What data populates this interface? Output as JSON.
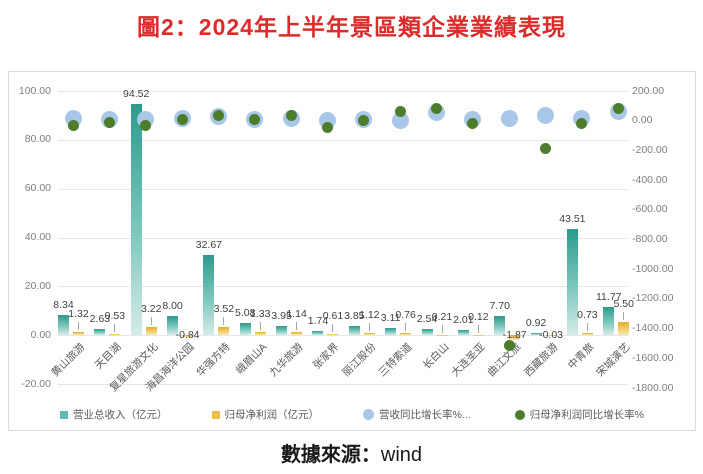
{
  "page": {
    "title": "圖2：2024年上半年景區類企業業績表現",
    "caption_prefix": "數據來源：",
    "caption_source": "wind"
  },
  "colors": {
    "title_red": "#dd2b2b",
    "revenue_bar_top": "#2d9a8d",
    "revenue_bar_bottom": "#d5ece8",
    "profit_bar_top": "#e4ae35",
    "profit_bar_bottom": "#f8e9b4",
    "revenue_growth_marker": "#a9c7e8",
    "profit_growth_marker": "#4d7d2c",
    "axis_text": "#7f7f7f",
    "gridline": "#e7e7e7",
    "frame_border": "#d9d9d9"
  },
  "legend": {
    "items": [
      {
        "label": "营业总收入（亿元）",
        "marker": "square",
        "color": "#5fb9ae"
      },
      {
        "label": "归母净利润（亿元）",
        "marker": "square",
        "color": "#ecc04b"
      },
      {
        "label": "营收同比增长率%...",
        "marker": "circle",
        "color": "#a9c7e8"
      },
      {
        "label": "归母净利润同比增长率%",
        "marker": "circle",
        "color": "#4d7d2c"
      }
    ]
  },
  "chart_data": {
    "type": "bar",
    "subtype": "combo bar + scatter, dual axis",
    "title": "圖2：2024年上半年景區類企業業績表現",
    "categories": [
      "黄山旅游",
      "天目湖",
      "复星旅游文化",
      "海昌海洋公园",
      "华强方特",
      "峨眉山A",
      "九华旅游",
      "张家界",
      "丽江股份",
      "三特索道",
      "长白山",
      "大连圣亚",
      "曲江文旅",
      "西藏旅游",
      "中青旅",
      "宋城演艺"
    ],
    "series": [
      {
        "name": "营业总收入（亿元）",
        "type": "bar",
        "axis": "left",
        "values": [
          8.34,
          2.63,
          94.52,
          8.0,
          32.67,
          5.08,
          3.95,
          1.74,
          3.85,
          3.11,
          2.54,
          2.01,
          7.7,
          0.92,
          43.51,
          11.77
        ]
      },
      {
        "name": "归母净利润（亿元）",
        "type": "bar",
        "axis": "left",
        "values": [
          1.32,
          0.53,
          3.22,
          -0.84,
          3.52,
          1.33,
          1.14,
          0.61,
          1.12,
          0.76,
          0.21,
          0.12,
          -1.87,
          -0.03,
          0.73,
          5.5
        ]
      },
      {
        "name": "营收同比增长率%...",
        "type": "scatter",
        "axis": "right",
        "values": [
          18,
          11,
          11,
          15,
          25,
          11,
          18,
          -2,
          5,
          -2,
          52,
          11,
          18,
          32,
          18,
          59
        ]
      },
      {
        "name": "归母净利润同比增长率%",
        "type": "scatter",
        "axis": "right",
        "values": [
          -29,
          -9,
          -29,
          8,
          38,
          5,
          32,
          -49,
          -2,
          65,
          79,
          -22,
          -1515,
          -184,
          -22,
          85
        ]
      }
    ],
    "left_axis": {
      "min": -20,
      "max": 100,
      "step": 20,
      "tick_labels": [
        "100.00",
        "80.00",
        "60.00",
        "40.00",
        "20.00",
        "0.00",
        "-20.00"
      ]
    },
    "right_axis": {
      "min": -1800,
      "max": 200,
      "step": 200,
      "tick_labels": [
        "200.00",
        "0.00",
        "-200.00",
        "-400.00",
        "-600.00",
        "-800.00",
        "-1000.00",
        "-1200.00",
        "-1400.00",
        "-1600.00",
        "-1800.00"
      ]
    },
    "grid": true,
    "legend_position": "bottom",
    "data_labels": "bar series only, 2 decimals",
    "source": "數據來源：wind"
  }
}
